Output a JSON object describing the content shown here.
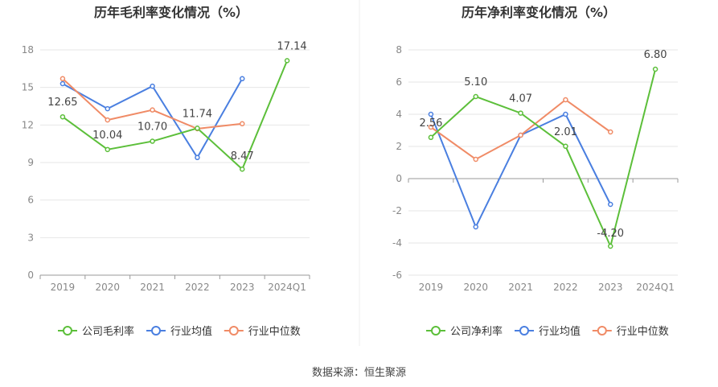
{
  "source_text": "数据来源：恒生聚源",
  "colors": {
    "company": "#5cbf3a",
    "industry_avg": "#4a7fe0",
    "industry_median": "#f08b66",
    "grid": "#e6e6e6",
    "axis_text": "#888888",
    "label_text": "#444444",
    "title_text": "#333333"
  },
  "chart_data": [
    {
      "type": "line",
      "title": "历年毛利率变化情况（%）",
      "categories": [
        "2019",
        "2020",
        "2021",
        "2022",
        "2023",
        "2024Q1"
      ],
      "ylim": [
        0,
        18
      ],
      "yticks": [
        0,
        3,
        6,
        9,
        12,
        15,
        18
      ],
      "grid": true,
      "legend_position": "bottom",
      "series": [
        {
          "name": "公司毛利率",
          "key": "company",
          "values": [
            12.65,
            10.04,
            10.7,
            11.74,
            8.47,
            17.14
          ],
          "labels": [
            "12.65",
            "10.04",
            "10.70",
            "11.74",
            "8.47",
            "17.14"
          ]
        },
        {
          "name": "行业均值",
          "key": "industry_avg",
          "values": [
            15.3,
            13.3,
            15.1,
            9.4,
            15.7,
            null
          ]
        },
        {
          "name": "行业中位数",
          "key": "industry_median",
          "values": [
            15.7,
            12.4,
            13.2,
            11.7,
            12.1,
            null
          ]
        }
      ]
    },
    {
      "type": "line",
      "title": "历年净利率变化情况（%）",
      "categories": [
        "2019",
        "2020",
        "2021",
        "2022",
        "2023",
        "2024Q1"
      ],
      "ylim": [
        -6,
        8
      ],
      "yticks": [
        -6,
        -4,
        -2,
        0,
        2,
        4,
        6,
        8
      ],
      "grid": true,
      "legend_position": "bottom",
      "series": [
        {
          "name": "公司净利率",
          "key": "company",
          "values": [
            2.56,
            5.1,
            4.07,
            2.01,
            -4.2,
            6.8
          ],
          "labels": [
            "2.56",
            "5.10",
            "4.07",
            "2.01",
            "-4.20",
            "6.80"
          ]
        },
        {
          "name": "行业均值",
          "key": "industry_avg",
          "values": [
            4.0,
            -3.0,
            2.7,
            4.0,
            -1.6,
            null
          ]
        },
        {
          "name": "行业中位数",
          "key": "industry_median",
          "values": [
            3.2,
            1.2,
            2.7,
            4.9,
            2.9,
            null
          ]
        }
      ]
    }
  ]
}
